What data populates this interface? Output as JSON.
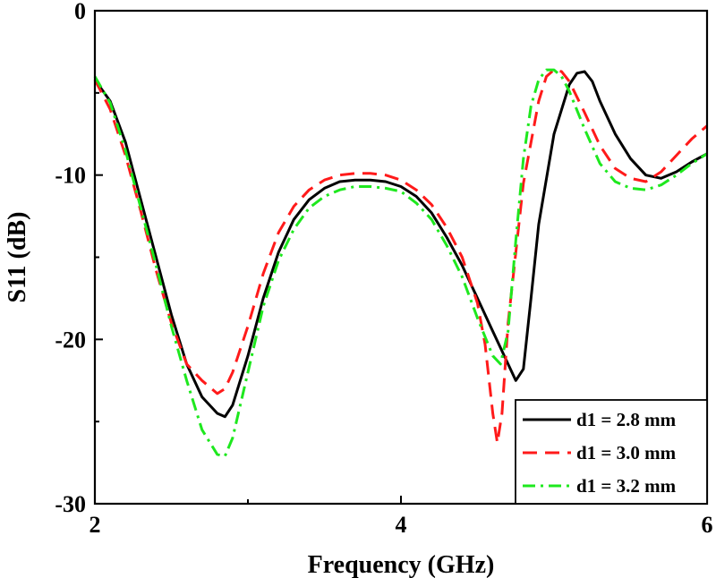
{
  "chart_data": {
    "type": "line",
    "title": "",
    "xlabel": "Frequency (GHz)",
    "ylabel": "S11 (dB)",
    "xlim": [
      2,
      6
    ],
    "ylim": [
      -30,
      0
    ],
    "xticks": [
      2,
      4,
      6
    ],
    "yticks": [
      0,
      -10,
      -20,
      -30
    ],
    "xtick_labels": [
      "2",
      "4",
      "6"
    ],
    "ytick_labels": [
      "0",
      "-10",
      "-20",
      "-30"
    ],
    "grid": false,
    "legend_position": "bottom-right",
    "series": [
      {
        "name": "d1 = 2.8 mm",
        "color": "#000000",
        "style": "solid",
        "x": [
          2.0,
          2.1,
          2.2,
          2.3,
          2.4,
          2.5,
          2.6,
          2.7,
          2.8,
          2.85,
          2.9,
          3.0,
          3.1,
          3.2,
          3.3,
          3.4,
          3.5,
          3.6,
          3.7,
          3.8,
          3.9,
          4.0,
          4.1,
          4.2,
          4.3,
          4.4,
          4.5,
          4.6,
          4.7,
          4.75,
          4.8,
          4.85,
          4.9,
          5.0,
          5.1,
          5.15,
          5.2,
          5.25,
          5.3,
          5.4,
          5.5,
          5.6,
          5.7,
          5.8,
          5.9,
          6.0
        ],
        "y": [
          -4.2,
          -5.5,
          -8.0,
          -11.5,
          -15.0,
          -18.5,
          -21.5,
          -23.5,
          -24.5,
          -24.7,
          -24.0,
          -21.0,
          -17.5,
          -14.7,
          -12.7,
          -11.5,
          -10.8,
          -10.4,
          -10.3,
          -10.3,
          -10.4,
          -10.7,
          -11.3,
          -12.3,
          -13.8,
          -15.5,
          -17.5,
          -19.5,
          -21.5,
          -22.5,
          -21.8,
          -17.5,
          -13.0,
          -7.5,
          -4.5,
          -3.8,
          -3.7,
          -4.3,
          -5.5,
          -7.5,
          -9.0,
          -10.0,
          -10.2,
          -9.8,
          -9.2,
          -8.7
        ]
      },
      {
        "name": "d1 = 3.0 mm",
        "color": "#ff1a1a",
        "style": "dashed",
        "x": [
          2.0,
          2.1,
          2.2,
          2.3,
          2.4,
          2.5,
          2.6,
          2.7,
          2.8,
          2.85,
          2.9,
          3.0,
          3.1,
          3.2,
          3.3,
          3.4,
          3.5,
          3.6,
          3.7,
          3.8,
          3.9,
          4.0,
          4.1,
          4.2,
          4.3,
          4.4,
          4.5,
          4.55,
          4.6,
          4.63,
          4.66,
          4.7,
          4.8,
          4.9,
          4.95,
          5.0,
          5.05,
          5.1,
          5.2,
          5.3,
          5.4,
          5.5,
          5.6,
          5.7,
          5.8,
          5.9,
          6.0
        ],
        "y": [
          -4.2,
          -6.0,
          -8.8,
          -12.2,
          -15.8,
          -19.0,
          -21.5,
          -22.5,
          -23.3,
          -23.0,
          -22.0,
          -19.2,
          -16.0,
          -13.5,
          -11.9,
          -10.9,
          -10.3,
          -10.0,
          -9.9,
          -9.9,
          -10.0,
          -10.3,
          -10.9,
          -11.8,
          -13.2,
          -15.0,
          -17.8,
          -20.3,
          -24.5,
          -26.3,
          -24.5,
          -19.0,
          -10.5,
          -5.5,
          -4.0,
          -3.6,
          -3.7,
          -4.3,
          -6.2,
          -8.2,
          -9.6,
          -10.2,
          -10.4,
          -9.8,
          -8.8,
          -7.8,
          -7.0
        ]
      },
      {
        "name": "d1 = 3.2 mm",
        "color": "#1ee81e",
        "style": "dashdot",
        "x": [
          2.0,
          2.1,
          2.2,
          2.3,
          2.4,
          2.5,
          2.6,
          2.7,
          2.8,
          2.85,
          2.9,
          3.0,
          3.1,
          3.2,
          3.3,
          3.4,
          3.5,
          3.6,
          3.7,
          3.8,
          3.9,
          4.0,
          4.1,
          4.2,
          4.3,
          4.4,
          4.5,
          4.6,
          4.65,
          4.7,
          4.75,
          4.8,
          4.85,
          4.9,
          4.95,
          5.0,
          5.05,
          5.1,
          5.2,
          5.3,
          5.4,
          5.5,
          5.6,
          5.7,
          5.8,
          5.9,
          6.0
        ],
        "y": [
          -4.0,
          -5.6,
          -8.5,
          -12.0,
          -15.5,
          -19.2,
          -22.5,
          -25.5,
          -27.0,
          -27.1,
          -26.0,
          -22.0,
          -18.0,
          -15.2,
          -13.3,
          -12.0,
          -11.3,
          -10.9,
          -10.7,
          -10.7,
          -10.8,
          -11.0,
          -11.7,
          -12.7,
          -14.3,
          -16.2,
          -18.7,
          -21.0,
          -21.5,
          -19.5,
          -14.0,
          -9.0,
          -5.8,
          -4.2,
          -3.6,
          -3.6,
          -4.0,
          -4.9,
          -7.2,
          -9.3,
          -10.4,
          -10.8,
          -10.9,
          -10.6,
          -10.0,
          -9.3,
          -8.7
        ]
      }
    ]
  }
}
